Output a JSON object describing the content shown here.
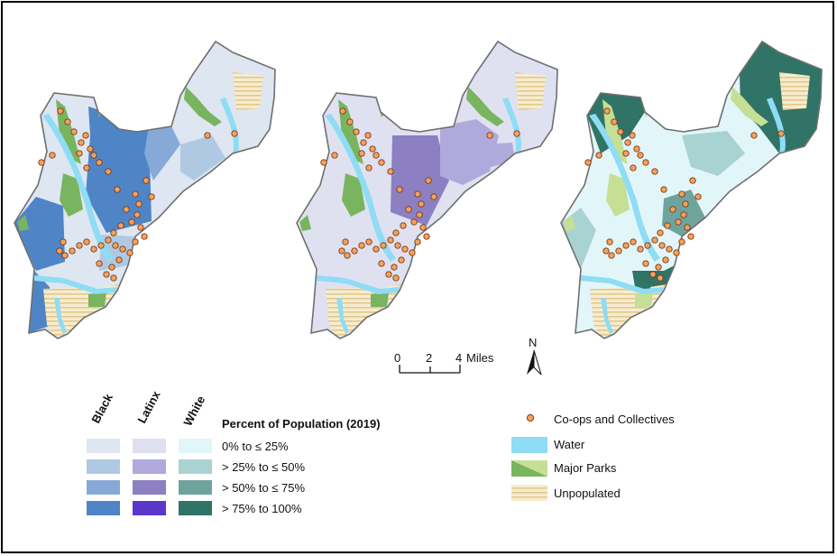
{
  "maps": [
    {
      "group": "Black"
    },
    {
      "group": "Latinx"
    },
    {
      "group": "White"
    }
  ],
  "scale_bar": {
    "ticks": [
      "0",
      "2",
      "4"
    ],
    "unit": "Miles"
  },
  "north_arrow": {
    "label": "N"
  },
  "legend_left": {
    "columns": [
      "Black",
      "Latinx",
      "White"
    ],
    "title": "Percent of Population (2019)",
    "classes": [
      {
        "label": "0% to ≤ 25%",
        "colors": [
          "#dde6f1",
          "#dfe1f1",
          "#e2f6f9"
        ]
      },
      {
        "label": "> 25% to ≤ 50%",
        "colors": [
          "#b0c9e3",
          "#b0aadc",
          "#a9d3d2"
        ]
      },
      {
        "label": "> 50% to ≤ 75%",
        "colors": [
          "#87a9d8",
          "#8c7fc2",
          "#6fa39e"
        ]
      },
      {
        "label": "> 75% to 100%",
        "colors": [
          "#4f85c6",
          "#5b37c9",
          "#2f7466"
        ]
      }
    ]
  },
  "legend_right": {
    "items": [
      {
        "label": "Co-ops and Collectives",
        "icon": "point-icon"
      },
      {
        "label": "Water",
        "icon": "water-swatch"
      },
      {
        "label": "Major Parks",
        "icon": "park-swatch"
      },
      {
        "label": "Unpopulated",
        "icon": "hatch-swatch"
      }
    ]
  },
  "colors": {
    "outline": "#6f6f6f",
    "water": "#8fdcf5",
    "park_dark": "#79b45e",
    "park_light": "#c5df95",
    "unpop_bg": "#f7ecd0",
    "unpop_stripe": "#e2c98a",
    "point_fill": "#f4a160",
    "point_stroke": "#7a3a12"
  }
}
